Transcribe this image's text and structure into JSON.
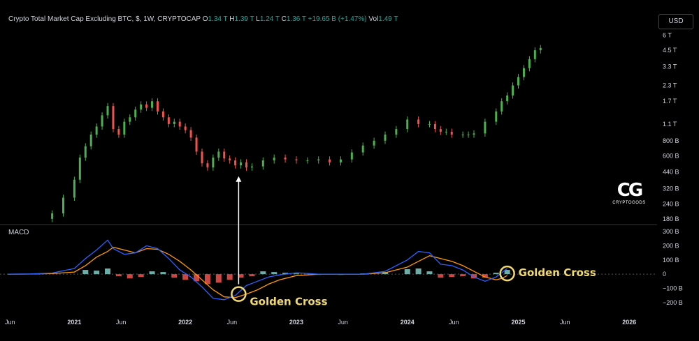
{
  "header": {
    "title": "Crypto Total Market Cap Excluding BTC, $, 1W, CRYPTOCAP",
    "o_label": "O",
    "o_value": "1.34 T",
    "h_label": "H",
    "h_value": "1.39 T",
    "l_label": "L",
    "l_value": "1.24 T",
    "c_label": "C",
    "c_value": "1.36 T",
    "change": "+19.65 B (+1.47%)",
    "vol_label": "Vol",
    "vol_value": "1.49 T"
  },
  "currency": "USD",
  "macd_label": "MACD",
  "logo_name": "CRYPTOGODS",
  "colors": {
    "up": "#4caf50",
    "down": "#ef5350",
    "macd_line": "#2962ff",
    "signal_line": "#ff9800",
    "hist_pos": "#80cbc4",
    "hist_neg": "#ef5350",
    "annotation": "#f0d870",
    "arrow": "#ffffff"
  },
  "chart_data": [
    {
      "type": "line",
      "name": "price",
      "scale": "log",
      "y_ticks": [
        {
          "label": "6 T",
          "value": 6000
        },
        {
          "label": "4.5 T",
          "value": 4500
        },
        {
          "label": "3.3 T",
          "value": 3300
        },
        {
          "label": "2.3 T",
          "value": 2300
        },
        {
          "label": "1.7 T",
          "value": 1700
        },
        {
          "label": "1.1 T",
          "value": 1100
        },
        {
          "label": "800 B",
          "value": 800
        },
        {
          "label": "600 B",
          "value": 600
        },
        {
          "label": "440 B",
          "value": 440
        },
        {
          "label": "320 B",
          "value": 320
        },
        {
          "label": "240 B",
          "value": 240
        },
        {
          "label": "180 B",
          "value": 180
        }
      ],
      "ylim": [
        175,
        6200
      ],
      "xlim": [
        2020.33,
        2026.25
      ],
      "x": [
        2020.7,
        2020.8,
        2020.9,
        2021.0,
        2021.05,
        2021.1,
        2021.15,
        2021.2,
        2021.25,
        2021.3,
        2021.35,
        2021.4,
        2021.45,
        2021.5,
        2021.55,
        2021.6,
        2021.65,
        2021.7,
        2021.75,
        2021.8,
        2021.85,
        2021.9,
        2021.95,
        2022.0,
        2022.05,
        2022.1,
        2022.15,
        2022.2,
        2022.25,
        2022.3,
        2022.35,
        2022.4,
        2022.45,
        2022.5,
        2022.55,
        2022.6,
        2022.7,
        2022.8,
        2022.9,
        2023.0,
        2023.1,
        2023.2,
        2023.3,
        2023.4,
        2023.5,
        2023.6,
        2023.7,
        2023.8,
        2023.9,
        2024.0,
        2024.1,
        2024.2,
        2024.25,
        2024.3,
        2024.35,
        2024.4,
        2024.5,
        2024.55,
        2024.6,
        2024.7,
        2024.8,
        2024.85,
        2024.9,
        2024.95,
        2025.0,
        2025.05,
        2025.1,
        2025.15,
        2025.2
      ],
      "values": [
        180,
        200,
        270,
        380,
        580,
        720,
        900,
        1050,
        1300,
        1550,
        1000,
        900,
        1150,
        1250,
        1450,
        1600,
        1500,
        1700,
        1400,
        1250,
        1100,
        1150,
        1050,
        980,
        850,
        650,
        520,
        480,
        580,
        650,
        570,
        550,
        500,
        530,
        480,
        490,
        550,
        580,
        560,
        550,
        550,
        560,
        530,
        560,
        640,
        730,
        800,
        900,
        1000,
        1200,
        1100,
        1100,
        1000,
        950,
        950,
        900,
        900,
        900,
        920,
        1150,
        1400,
        1700,
        1900,
        2300,
        2700,
        3200,
        3800,
        4500,
        4700
      ]
    },
    {
      "type": "line",
      "name": "MACD",
      "y_ticks": [
        {
          "label": "300 B",
          "value": 300
        },
        {
          "label": "200 B",
          "value": 200
        },
        {
          "label": "100 B",
          "value": 100
        },
        {
          "label": "0",
          "value": 0
        },
        {
          "label": "−100 B",
          "value": -100
        },
        {
          "label": "−200 B",
          "value": -200
        }
      ],
      "ylim": [
        -230,
        320
      ],
      "xlim": [
        2020.33,
        2026.25
      ],
      "x": [
        2020.4,
        2020.6,
        2020.8,
        2021.0,
        2021.1,
        2021.2,
        2021.3,
        2021.35,
        2021.45,
        2021.55,
        2021.65,
        2021.75,
        2021.85,
        2021.95,
        2022.05,
        2022.15,
        2022.25,
        2022.35,
        2022.45,
        2022.55,
        2022.65,
        2022.75,
        2022.85,
        2023.0,
        2023.2,
        2023.4,
        2023.6,
        2023.8,
        2024.0,
        2024.1,
        2024.2,
        2024.3,
        2024.4,
        2024.5,
        2024.6,
        2024.7,
        2024.8,
        2024.85,
        2024.9
      ],
      "macd": [
        0,
        2,
        8,
        40,
        110,
        170,
        240,
        180,
        140,
        150,
        200,
        180,
        110,
        30,
        -20,
        -90,
        -170,
        -180,
        -150,
        -80,
        -50,
        -20,
        -5,
        10,
        0,
        0,
        0,
        20,
        100,
        160,
        150,
        70,
        60,
        30,
        -20,
        -50,
        -20,
        10,
        40
      ],
      "signal": [
        0,
        1,
        4,
        15,
        60,
        120,
        160,
        190,
        170,
        150,
        180,
        175,
        140,
        90,
        30,
        -40,
        -110,
        -160,
        -165,
        -140,
        -110,
        -70,
        -40,
        -10,
        0,
        0,
        0,
        10,
        50,
        90,
        130,
        110,
        90,
        60,
        20,
        -20,
        -40,
        -30,
        -10
      ],
      "hist_x": [
        2021.1,
        2021.2,
        2021.3,
        2021.4,
        2021.5,
        2021.6,
        2021.7,
        2021.8,
        2021.9,
        2022.0,
        2022.1,
        2022.2,
        2022.3,
        2022.4,
        2022.5,
        2022.6,
        2022.7,
        2022.8,
        2022.9,
        2023.0,
        2023.2,
        2023.4,
        2023.6,
        2023.8,
        2024.0,
        2024.1,
        2024.2,
        2024.3,
        2024.4,
        2024.5,
        2024.6,
        2024.7,
        2024.8,
        2024.9
      ],
      "hist": [
        30,
        25,
        40,
        -15,
        -30,
        -20,
        20,
        15,
        -25,
        -40,
        -50,
        -70,
        -60,
        -40,
        -25,
        -15,
        20,
        15,
        10,
        5,
        0,
        0,
        5,
        15,
        35,
        40,
        20,
        -25,
        -20,
        -15,
        -30,
        -25,
        10,
        30
      ],
      "annotations": [
        {
          "label": "Golden Cross",
          "x": 2022.48,
          "y": -140
        },
        {
          "label": "Golden Cross",
          "x": 2024.9,
          "y": 5
        }
      ]
    }
  ],
  "x_ticks": [
    {
      "label": "Jun",
      "value": 2020.42,
      "bold": false
    },
    {
      "label": "2021",
      "value": 2021.0,
      "bold": true
    },
    {
      "label": "Jun",
      "value": 2021.42,
      "bold": false
    },
    {
      "label": "2022",
      "value": 2022.0,
      "bold": true
    },
    {
      "label": "Jun",
      "value": 2022.42,
      "bold": false
    },
    {
      "label": "2023",
      "value": 2023.0,
      "bold": true
    },
    {
      "label": "Jun",
      "value": 2023.42,
      "bold": false
    },
    {
      "label": "2024",
      "value": 2024.0,
      "bold": true
    },
    {
      "label": "Jun",
      "value": 2024.42,
      "bold": false
    },
    {
      "label": "2025",
      "value": 2025.0,
      "bold": true
    },
    {
      "label": "Jun",
      "value": 2025.42,
      "bold": false
    },
    {
      "label": "2026",
      "value": 2026.0,
      "bold": true
    }
  ]
}
